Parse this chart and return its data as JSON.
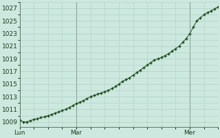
{
  "title": "",
  "bg_color": "#cce8df",
  "plot_bg_color": "#cce8df",
  "grid_color": "#b0cfc5",
  "line_color": "#1a4a1a",
  "marker_color": "#1a4a1a",
  "yticks": [
    1009,
    1011,
    1013,
    1015,
    1017,
    1019,
    1021,
    1023,
    1025,
    1027
  ],
  "ylim": [
    1008.2,
    1028.0
  ],
  "xtick_labels": [
    "Lun",
    "Mar",
    "Mer"
  ],
  "xtick_positions": [
    0,
    16,
    48
  ],
  "vline_positions": [
    0,
    16,
    48
  ],
  "x_values": [
    0,
    1,
    2,
    3,
    4,
    5,
    6,
    7,
    8,
    9,
    10,
    11,
    12,
    13,
    14,
    15,
    16,
    17,
    18,
    19,
    20,
    21,
    22,
    23,
    24,
    25,
    26,
    27,
    28,
    29,
    30,
    31,
    32,
    33,
    34,
    35,
    36,
    37,
    38,
    39,
    40,
    41,
    42,
    43,
    44,
    45,
    46,
    47,
    48,
    49,
    50,
    51,
    52,
    53,
    54,
    55,
    56
  ],
  "y_values": [
    1009.3,
    1009.0,
    1009.0,
    1009.2,
    1009.4,
    1009.5,
    1009.7,
    1009.8,
    1010.0,
    1010.2,
    1010.4,
    1010.6,
    1010.8,
    1011.0,
    1011.3,
    1011.6,
    1011.9,
    1012.1,
    1012.4,
    1012.7,
    1013.0,
    1013.2,
    1013.4,
    1013.6,
    1013.8,
    1014.0,
    1014.3,
    1014.6,
    1015.0,
    1015.4,
    1015.7,
    1016.0,
    1016.4,
    1016.8,
    1017.2,
    1017.6,
    1018.0,
    1018.4,
    1018.8,
    1019.0,
    1019.2,
    1019.5,
    1019.8,
    1020.2,
    1020.6,
    1021.0,
    1021.6,
    1022.2,
    1023.0,
    1024.0,
    1025.0,
    1025.5,
    1026.0,
    1026.3,
    1026.6,
    1026.9,
    1027.2
  ],
  "xlim": [
    0,
    56
  ],
  "font_color": "#1a3a1a",
  "tick_fontsize": 6.5,
  "vline_color": "#8a9a8a",
  "spine_color": "#5a7a5a"
}
